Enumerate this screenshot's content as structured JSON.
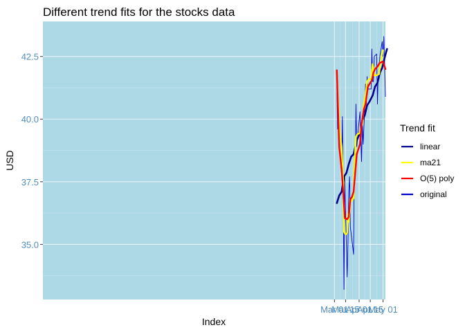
{
  "chart_data": {
    "type": "line",
    "title": "Different trend fits for the stocks data",
    "xlabel": "Index",
    "ylabel": "USD",
    "x_ticks": [
      "Mar 01",
      "Mar 15",
      "Apr 01",
      "Apr 15",
      "May 01"
    ],
    "x_tick_dates": [
      "2023-03-01",
      "2023-03-15",
      "2023-04-01",
      "2023-04-15",
      "2023-05-01"
    ],
    "y_ticks": [
      35.0,
      37.5,
      40.0,
      42.5
    ],
    "xlim": [
      "2022-02-28",
      "2023-05-04"
    ],
    "ylim": [
      32.8,
      43.9
    ],
    "grid": true,
    "legend_title": "Trend fit",
    "legend_position": "right",
    "colors": {
      "panel_background": "#add8e6",
      "grid_major": "#e8f3f8",
      "grid_minor": "#c9e5ef",
      "tick_label": "#4f8dbf"
    },
    "series": [
      {
        "name": "original",
        "color": "#0000cd",
        "stroke": 0.9,
        "points": [
          [
            "2023-03-04",
            41.3
          ],
          [
            "2023-03-05",
            39.6
          ],
          [
            "2023-03-06",
            39.8
          ],
          [
            "2023-03-09",
            38.1
          ],
          [
            "2023-03-10",
            37.8
          ],
          [
            "2023-03-11",
            40.1
          ],
          [
            "2023-03-12",
            37.1
          ],
          [
            "2023-03-13",
            33.2
          ],
          [
            "2023-03-14",
            37.7
          ],
          [
            "2023-03-15",
            36.3
          ],
          [
            "2023-03-17",
            33.7
          ],
          [
            "2023-03-18",
            35.1
          ],
          [
            "2023-03-19",
            37.1
          ],
          [
            "2023-03-20",
            37.7
          ],
          [
            "2023-03-21",
            35.7
          ],
          [
            "2023-03-25",
            34.6
          ],
          [
            "2023-03-26",
            38.6
          ],
          [
            "2023-03-27",
            37.8
          ],
          [
            "2023-03-28",
            40.6
          ],
          [
            "2023-03-29",
            38.9
          ],
          [
            "2023-04-02",
            40.3
          ],
          [
            "2023-04-04",
            38.3
          ],
          [
            "2023-04-05",
            39.8
          ],
          [
            "2023-04-06",
            39.0
          ],
          [
            "2023-04-08",
            40.4
          ],
          [
            "2023-04-09",
            41.4
          ],
          [
            "2023-04-10",
            40.6
          ],
          [
            "2023-04-11",
            41.7
          ],
          [
            "2023-04-12",
            41.2
          ],
          [
            "2023-04-15",
            41.2
          ],
          [
            "2023-04-16",
            41.2
          ],
          [
            "2023-04-17",
            42.8
          ],
          [
            "2023-04-18",
            41.5
          ],
          [
            "2023-04-19",
            41.5
          ],
          [
            "2023-04-20",
            42.5
          ],
          [
            "2023-04-23",
            42.6
          ],
          [
            "2023-04-24",
            40.6
          ],
          [
            "2023-04-25",
            41.8
          ],
          [
            "2023-04-26",
            41.6
          ],
          [
            "2023-04-27",
            42.5
          ],
          [
            "2023-04-30",
            43.1
          ],
          [
            "2023-05-01",
            42.5
          ],
          [
            "2023-05-02",
            43.3
          ],
          [
            "2023-05-04",
            40.9
          ]
        ]
      },
      {
        "name": "linear",
        "color": "#00008b",
        "stroke": 2.6,
        "points": [
          [
            "2023-03-04",
            36.65
          ],
          [
            "2023-03-07",
            36.95
          ],
          [
            "2023-03-10",
            37.1
          ],
          [
            "2023-03-13",
            37.7
          ],
          [
            "2023-03-16",
            37.85
          ],
          [
            "2023-03-19",
            38.2
          ],
          [
            "2023-03-22",
            38.5
          ],
          [
            "2023-03-25",
            38.6
          ],
          [
            "2023-03-29",
            39.15
          ],
          [
            "2023-04-02",
            39.45
          ],
          [
            "2023-04-05",
            39.95
          ],
          [
            "2023-04-08",
            40.15
          ],
          [
            "2023-04-11",
            40.55
          ],
          [
            "2023-04-14",
            40.7
          ],
          [
            "2023-04-18",
            40.95
          ],
          [
            "2023-04-21",
            41.3
          ],
          [
            "2023-04-24",
            41.45
          ],
          [
            "2023-04-27",
            41.85
          ],
          [
            "2023-04-30",
            42.05
          ],
          [
            "2023-05-03",
            42.45
          ],
          [
            "2023-05-06",
            42.8
          ]
        ]
      },
      {
        "name": "ma21",
        "color": "#ffff00",
        "stroke": 2.4,
        "points": [
          [
            "2023-03-04",
            41.9
          ],
          [
            "2023-03-07",
            39.75
          ],
          [
            "2023-03-10",
            38.85
          ],
          [
            "2023-03-12",
            37.5
          ],
          [
            "2023-03-13",
            35.5
          ],
          [
            "2023-03-15",
            35.4
          ],
          [
            "2023-03-17",
            35.45
          ],
          [
            "2023-03-18",
            36.2
          ],
          [
            "2023-03-19",
            35.9
          ],
          [
            "2023-03-21",
            36.7
          ],
          [
            "2023-03-23",
            36.75
          ],
          [
            "2023-03-25",
            36.85
          ],
          [
            "2023-03-26",
            38.1
          ],
          [
            "2023-03-28",
            39.3
          ],
          [
            "2023-03-30",
            39.4
          ],
          [
            "2023-04-02",
            39.45
          ],
          [
            "2023-04-03",
            39.6
          ],
          [
            "2023-04-05",
            39.85
          ],
          [
            "2023-04-07",
            40.6
          ],
          [
            "2023-04-09",
            40.95
          ],
          [
            "2023-04-11",
            41.5
          ],
          [
            "2023-04-13",
            41.6
          ],
          [
            "2023-04-16",
            41.6
          ],
          [
            "2023-04-18",
            42.2
          ],
          [
            "2023-04-20",
            41.75
          ],
          [
            "2023-04-23",
            41.75
          ],
          [
            "2023-04-26",
            41.8
          ],
          [
            "2023-04-28",
            42.3
          ],
          [
            "2023-05-01",
            42.75
          ]
        ]
      },
      {
        "name": "O(5) poly",
        "color": "#ff0000",
        "stroke": 2.4,
        "points": [
          [
            "2023-03-04",
            41.95
          ],
          [
            "2023-03-07",
            38.9
          ],
          [
            "2023-03-10",
            38.0
          ],
          [
            "2023-03-12",
            37.1
          ],
          [
            "2023-03-14",
            36.05
          ],
          [
            "2023-03-17",
            36.0
          ],
          [
            "2023-03-19",
            36.1
          ],
          [
            "2023-03-21",
            36.8
          ],
          [
            "2023-03-23",
            36.9
          ],
          [
            "2023-03-25",
            37.1
          ],
          [
            "2023-03-29",
            38.6
          ],
          [
            "2023-04-02",
            39.0
          ],
          [
            "2023-04-04",
            39.8
          ],
          [
            "2023-04-07",
            40.4
          ],
          [
            "2023-04-09",
            40.6
          ],
          [
            "2023-04-12",
            41.3
          ],
          [
            "2023-04-15",
            41.45
          ],
          [
            "2023-04-17",
            41.55
          ],
          [
            "2023-04-19",
            41.85
          ],
          [
            "2023-04-21",
            42.0
          ],
          [
            "2023-04-24",
            42.1
          ],
          [
            "2023-04-27",
            42.25
          ],
          [
            "2023-05-01",
            42.3
          ],
          [
            "2023-05-04",
            42.0
          ]
        ]
      }
    ],
    "legend_order": [
      "linear",
      "ma21",
      "O(5) poly",
      "original"
    ]
  }
}
